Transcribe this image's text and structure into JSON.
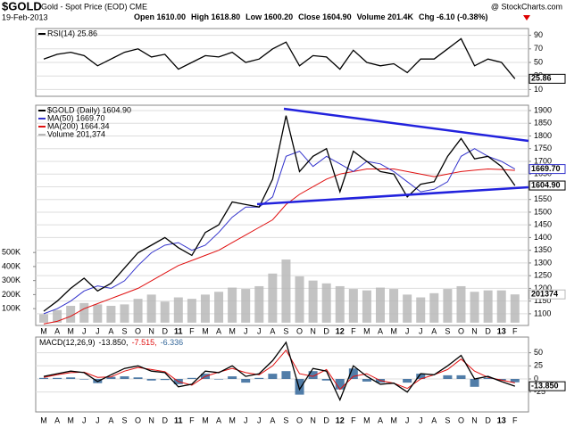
{
  "header": {
    "symbol": "$GOLD",
    "description": "Gold - Spot Price (EOD) CME",
    "source": "@ StockCharts.com",
    "date": "19-Feb-2013",
    "quote": [
      "Open 1610.00",
      "High 1618.80",
      "Low 1600.20",
      "Close 1604.90",
      "Volume 201.4K",
      "Chg -6.10 (-0.38%)"
    ]
  },
  "chart_data": [
    {
      "type": "line",
      "categories": [
        "M",
        "A",
        "M",
        "J",
        "J",
        "A",
        "S",
        "O",
        "N",
        "D",
        "11",
        "F",
        "M",
        "A",
        "M",
        "J",
        "J",
        "A",
        "S",
        "O",
        "N",
        "D",
        "12",
        "F",
        "M",
        "A",
        "M",
        "J",
        "J",
        "A",
        "S",
        "O",
        "N",
        "D",
        "13",
        "F"
      ],
      "ylim": [
        1054,
        1921
      ],
      "yticks": [
        1100,
        1150,
        1200,
        1250,
        1300,
        1350,
        1400,
        1450,
        1500,
        1550,
        1600,
        1650,
        1700,
        1750,
        1800,
        1850,
        1900
      ],
      "y2lim": [
        -20000,
        1550000
      ],
      "y2ticks": [
        {
          "value": 100000,
          "label": "100K"
        },
        {
          "value": 200000,
          "label": "200K"
        },
        {
          "value": 300000,
          "label": "300K"
        },
        {
          "value": 400000,
          "label": "400K"
        },
        {
          "value": 500000,
          "label": "500K"
        }
      ],
      "grid": true,
      "series": [
        {
          "name": "Volume 201,374",
          "type": "bar",
          "axis": "y2",
          "color": "#b8b8b8",
          "last_label": "201374",
          "values": [
            60000,
            90000,
            120000,
            140000,
            130000,
            120000,
            130000,
            170000,
            200000,
            150000,
            180000,
            170000,
            200000,
            220000,
            250000,
            240000,
            260000,
            350000,
            450000,
            330000,
            300000,
            280000,
            260000,
            240000,
            230000,
            250000,
            240000,
            200000,
            180000,
            210000,
            240000,
            260000,
            220000,
            230000,
            230000,
            201374
          ]
        },
        {
          "name": "MA(200) 1664.34",
          "type": "line",
          "color": "#e01010",
          "values": [
            1060,
            1070,
            1090,
            1120,
            1140,
            1160,
            1180,
            1200,
            1230,
            1260,
            1290,
            1310,
            1330,
            1350,
            1380,
            1410,
            1440,
            1470,
            1530,
            1570,
            1600,
            1630,
            1650,
            1660,
            1670,
            1670,
            1670,
            1660,
            1650,
            1640,
            1650,
            1660,
            1665,
            1670,
            1668,
            1664.34
          ]
        },
        {
          "name": "MA(50) 1669.70",
          "type": "line",
          "color": "#3333cc",
          "last_label": "1669.70",
          "values": [
            1100,
            1120,
            1150,
            1190,
            1210,
            1200,
            1230,
            1290,
            1340,
            1370,
            1380,
            1350,
            1370,
            1420,
            1480,
            1520,
            1520,
            1560,
            1720,
            1740,
            1680,
            1720,
            1690,
            1660,
            1700,
            1690,
            1660,
            1620,
            1580,
            1590,
            1620,
            1720,
            1750,
            1720,
            1700,
            1669.7
          ]
        },
        {
          "name": "$GOLD (Daily) 1604.90",
          "type": "line",
          "color": "#000000",
          "last_label": "1604.90",
          "values": [
            1110,
            1150,
            1200,
            1240,
            1190,
            1220,
            1280,
            1340,
            1370,
            1400,
            1360,
            1330,
            1420,
            1450,
            1540,
            1530,
            1520,
            1630,
            1880,
            1660,
            1720,
            1750,
            1580,
            1740,
            1700,
            1660,
            1650,
            1560,
            1610,
            1620,
            1720,
            1790,
            1710,
            1720,
            1680,
            1604.9
          ]
        }
      ]
    },
    {
      "type": "line",
      "ylim": [
        0,
        100
      ],
      "yticks": [
        10,
        30,
        50,
        70,
        90
      ],
      "grid": true,
      "series": [
        {
          "name": "RSI(14) 25.86",
          "type": "line",
          "color": "#000000",
          "last_label": "25.86",
          "values": [
            55,
            62,
            65,
            60,
            45,
            55,
            65,
            70,
            58,
            62,
            40,
            50,
            60,
            58,
            65,
            50,
            55,
            70,
            80,
            45,
            60,
            58,
            40,
            68,
            50,
            45,
            48,
            35,
            55,
            55,
            70,
            85,
            45,
            55,
            50,
            25.86
          ]
        }
      ]
    },
    {
      "type": "line",
      "categories": [
        "M",
        "A",
        "M",
        "J",
        "J",
        "A",
        "S",
        "O",
        "N",
        "D",
        "11",
        "F",
        "M",
        "A",
        "M",
        "J",
        "J",
        "A",
        "S",
        "O",
        "N",
        "D",
        "12",
        "F",
        "M",
        "A",
        "M",
        "J",
        "J",
        "A",
        "S",
        "O",
        "N",
        "D",
        "13",
        "F"
      ],
      "title": "MACD(12,26,9)",
      "ylim": [
        -63,
        80
      ],
      "yticks": [
        -25,
        0,
        25,
        50
      ],
      "grid": true,
      "series": [
        {
          "name": "-6.336",
          "type": "bar",
          "color": "#336699",
          "values": [
            2,
            2,
            3,
            -1,
            -8,
            4,
            5,
            3,
            -3,
            -2,
            -10,
            2,
            10,
            -1,
            5,
            -7,
            2,
            10,
            15,
            -30,
            15,
            -3,
            -20,
            20,
            -5,
            -7,
            0,
            -7,
            10,
            0,
            7,
            7,
            -15,
            2,
            -3,
            -6.336
          ]
        },
        {
          "name": "-7.515,",
          "type": "line",
          "color": "#e01010",
          "values": [
            3,
            8,
            12,
            13,
            3,
            4,
            15,
            22,
            18,
            14,
            -5,
            -12,
            5,
            13,
            20,
            12,
            8,
            25,
            55,
            10,
            5,
            18,
            -20,
            5,
            10,
            -3,
            -8,
            -18,
            0,
            8,
            18,
            38,
            15,
            3,
            -2,
            -7.515
          ]
        },
        {
          "name": "-13.850,",
          "type": "line",
          "color": "#000000",
          "last_label": "-13.850",
          "values": [
            5,
            10,
            15,
            12,
            -5,
            8,
            20,
            25,
            15,
            12,
            -15,
            -10,
            15,
            12,
            25,
            5,
            10,
            35,
            70,
            -20,
            20,
            15,
            -40,
            25,
            5,
            -10,
            -8,
            -25,
            10,
            8,
            25,
            45,
            0,
            5,
            -5,
            -13.85
          ]
        }
      ]
    }
  ]
}
